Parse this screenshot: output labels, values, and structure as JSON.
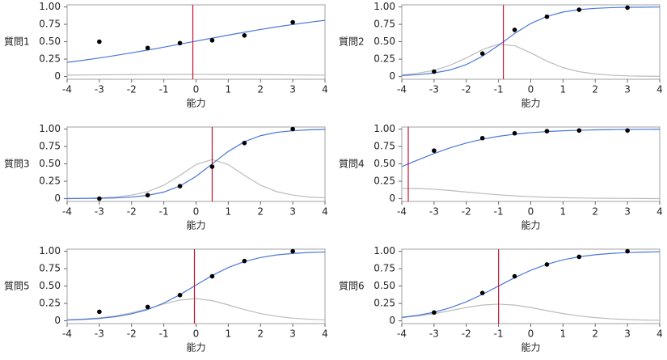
{
  "chart_data": [
    {
      "type": "line",
      "ylabel": "質問1",
      "xlabel": "能力",
      "xlim": [
        -4,
        4
      ],
      "xticks": [
        -4,
        -3,
        -2,
        -1,
        0,
        1,
        2,
        3,
        4
      ],
      "ylim": [
        -0.04,
        1.03
      ],
      "yticks": [
        0,
        0.25,
        {
          "value": 0.5,
          "label": "0.50"
        },
        0.75,
        {
          "value": 1,
          "label": "1.00"
        }
      ],
      "reference_x": -0.1,
      "reference_color": "#c8102e",
      "series": [
        {
          "color": "#4a78d8",
          "x": [
            -4,
            -3.5,
            -3,
            -2.5,
            -2,
            -1.5,
            -1,
            -0.5,
            0,
            0.5,
            1,
            1.5,
            2,
            2.5,
            3,
            3.5,
            4
          ],
          "values": [
            0.203,
            0.233,
            0.266,
            0.302,
            0.34,
            0.38,
            0.422,
            0.465,
            0.509,
            0.552,
            0.595,
            0.636,
            0.676,
            0.713,
            0.747,
            0.779,
            0.808
          ]
        },
        {
          "color": "#bbbbbb",
          "x": [
            -4,
            -3.5,
            -3,
            -2.5,
            -2,
            -1.5,
            -1,
            -0.5,
            0,
            0.5,
            1,
            1.5,
            2,
            2.5,
            3,
            3.5,
            4
          ],
          "values": [
            0.02,
            0.022,
            0.024,
            0.026,
            0.027,
            0.029,
            0.03,
            0.03,
            0.031,
            0.03,
            0.03,
            0.028,
            0.027,
            0.025,
            0.023,
            0.021,
            0.019
          ]
        },
        {
          "type": "scatter",
          "color": "#000000",
          "x": [
            -3,
            -1.5,
            -0.5,
            0.5,
            1.5,
            3
          ],
          "values": [
            0.5,
            0.41,
            0.48,
            0.52,
            0.59,
            0.78
          ]
        }
      ]
    },
    {
      "type": "line",
      "ylabel": "質問2",
      "xlabel": "能力",
      "xlim": [
        -4,
        4
      ],
      "xticks": [
        -4,
        -3,
        -2,
        -1,
        0,
        1,
        2,
        3,
        4
      ],
      "ylim": [
        -0.04,
        1.03
      ],
      "yticks": [
        0,
        0.25,
        {
          "value": 0.5,
          "label": "0.50"
        },
        0.75,
        {
          "value": 1,
          "label": "1.00"
        }
      ],
      "reference_x": -0.85,
      "reference_color": "#c8102e",
      "series": [
        {
          "color": "#4a78d8",
          "x": [
            -4,
            -3.5,
            -3,
            -2.5,
            -2,
            -1.5,
            -1,
            -0.5,
            0,
            0.5,
            1,
            1.5,
            2,
            2.5,
            3,
            3.5,
            4
          ],
          "values": [
            0.013,
            0.026,
            0.05,
            0.095,
            0.171,
            0.291,
            0.449,
            0.618,
            0.762,
            0.864,
            0.927,
            0.962,
            0.98,
            0.99,
            0.995,
            0.997,
            0.999
          ]
        },
        {
          "color": "#bbbbbb",
          "x": [
            -4,
            -3.5,
            -3,
            -2.5,
            -2,
            -1.5,
            -1,
            -0.5,
            0,
            0.5,
            1,
            1.5,
            2,
            2.5,
            3,
            3.5,
            4
          ],
          "values": [
            0.024,
            0.047,
            0.089,
            0.161,
            0.266,
            0.387,
            0.464,
            0.443,
            0.34,
            0.221,
            0.127,
            0.069,
            0.037,
            0.019,
            0.009,
            0.005,
            0.002
          ]
        },
        {
          "type": "scatter",
          "color": "#000000",
          "x": [
            -3,
            -1.5,
            -0.5,
            0.5,
            1.5,
            3
          ],
          "values": [
            0.07,
            0.33,
            0.67,
            0.86,
            0.96,
            0.99
          ]
        }
      ]
    },
    {
      "type": "line",
      "ylabel": "質問3",
      "xlabel": "能力",
      "xlim": [
        -4,
        4
      ],
      "xticks": [
        -4,
        -3,
        -2,
        -1,
        0,
        1,
        2,
        3,
        4
      ],
      "ylim": [
        -0.04,
        1.03
      ],
      "yticks": [
        0,
        0.25,
        {
          "value": 0.5,
          "label": "0.50"
        },
        0.75,
        {
          "value": 1,
          "label": "1.00"
        }
      ],
      "reference_x": 0.5,
      "reference_color": "#c8102e",
      "series": [
        {
          "color": "#4a78d8",
          "x": [
            -4,
            -3.5,
            -3,
            -2.5,
            -2,
            -1.5,
            -1,
            -0.5,
            0,
            0.5,
            1,
            1.5,
            2,
            2.5,
            3,
            3.5,
            4
          ],
          "values": [
            0.001,
            0.003,
            0.005,
            0.011,
            0.023,
            0.047,
            0.095,
            0.182,
            0.321,
            0.5,
            0.679,
            0.818,
            0.905,
            0.953,
            0.977,
            0.989,
            0.995
          ]
        },
        {
          "color": "#bbbbbb",
          "x": [
            -4,
            -3.5,
            -3,
            -2.5,
            -2,
            -1.5,
            -1,
            -0.5,
            0,
            0.5,
            1,
            1.5,
            2,
            2.5,
            3,
            3.5,
            4
          ],
          "values": [
            0.003,
            0.006,
            0.012,
            0.024,
            0.051,
            0.101,
            0.193,
            0.335,
            0.49,
            0.5625,
            0.49,
            0.335,
            0.193,
            0.101,
            0.051,
            0.024,
            0.012
          ]
        },
        {
          "type": "scatter",
          "color": "#000000",
          "x": [
            -3,
            -1.5,
            -0.5,
            0.5,
            1.5,
            3
          ],
          "values": [
            0,
            0.05,
            0.18,
            0.46,
            0.8,
            1.0
          ]
        }
      ]
    },
    {
      "type": "line",
      "ylabel": "質問4",
      "xlabel": "能力",
      "xlim": [
        -4,
        4
      ],
      "xticks": [
        -4,
        -3,
        -2,
        -1,
        0,
        1,
        2,
        3,
        4
      ],
      "ylim": [
        -0.04,
        1.03
      ],
      "yticks": [
        0,
        0.25,
        {
          "value": 0.5,
          "label": "0.50"
        },
        0.75,
        {
          "value": 1,
          "label": "1.00"
        }
      ],
      "reference_x": -3.8,
      "reference_color": "#c8102e",
      "series": [
        {
          "color": "#4a78d8",
          "x": [
            -4,
            -3.5,
            -3,
            -2.5,
            -2,
            -1.5,
            -1,
            -0.5,
            0,
            0.5,
            1,
            1.5,
            2,
            2.5,
            3,
            3.5,
            4
          ],
          "values": [
            0.462,
            0.557,
            0.649,
            0.731,
            0.8,
            0.855,
            0.896,
            0.927,
            0.949,
            0.965,
            0.976,
            0.983,
            0.989,
            0.992,
            0.995,
            0.996,
            0.998
          ]
        },
        {
          "color": "#bbbbbb",
          "x": [
            -4,
            -3.5,
            -3,
            -2.5,
            -2,
            -1.5,
            -1,
            -0.5,
            0,
            0.5,
            1,
            1.5,
            2,
            2.5,
            3,
            3.5,
            4
          ],
          "values": [
            0.147,
            0.146,
            0.135,
            0.117,
            0.095,
            0.074,
            0.055,
            0.04,
            0.029,
            0.02,
            0.014,
            0.01,
            0.006,
            0.005,
            0.003,
            0.002,
            0.001
          ]
        },
        {
          "type": "scatter",
          "color": "#000000",
          "x": [
            -3,
            -1.5,
            -0.5,
            0.5,
            1.5,
            3
          ],
          "values": [
            0.69,
            0.87,
            0.94,
            0.97,
            0.98,
            0.98
          ]
        }
      ]
    },
    {
      "type": "line",
      "ylabel": "質問5",
      "xlabel": "能力",
      "xlim": [
        -4,
        4
      ],
      "xticks": [
        -4,
        -3,
        -2,
        -1,
        0,
        1,
        2,
        3,
        4
      ],
      "ylim": [
        -0.04,
        1.03
      ],
      "yticks": [
        0,
        0.25,
        {
          "value": 0.5,
          "label": "0.50"
        },
        0.75,
        {
          "value": 1,
          "label": "1.00"
        }
      ],
      "reference_x": -0.05,
      "reference_color": "#c8102e",
      "series": [
        {
          "color": "#4a78d8",
          "x": [
            -4,
            -3.5,
            -3,
            -2.5,
            -2,
            -1.5,
            -1,
            -0.5,
            0,
            0.5,
            1,
            1.5,
            2,
            2.5,
            3,
            3.5,
            4
          ],
          "values": [
            0.011,
            0.02,
            0.034,
            0.059,
            0.1,
            0.162,
            0.255,
            0.375,
            0.514,
            0.651,
            0.766,
            0.852,
            0.91,
            0.947,
            0.969,
            0.982,
            0.99
          ]
        },
        {
          "color": "#bbbbbb",
          "x": [
            -4,
            -3.5,
            -3,
            -2.5,
            -2,
            -1.5,
            -1,
            -0.5,
            0,
            0.5,
            1,
            1.5,
            2,
            2.5,
            3,
            3.5,
            4
          ],
          "values": [
            0.014,
            0.025,
            0.042,
            0.071,
            0.114,
            0.173,
            0.243,
            0.299,
            0.319,
            0.29,
            0.229,
            0.161,
            0.105,
            0.064,
            0.038,
            0.023,
            0.013
          ]
        },
        {
          "type": "scatter",
          "color": "#000000",
          "x": [
            -3,
            -1.5,
            -0.5,
            0.5,
            1.5,
            3
          ],
          "values": [
            0.13,
            0.2,
            0.37,
            0.64,
            0.86,
            1.0
          ]
        }
      ]
    },
    {
      "type": "line",
      "ylabel": "質問6",
      "xlabel": "能力",
      "xlim": [
        -4,
        4
      ],
      "xticks": [
        -4,
        -3,
        -2,
        -1,
        0,
        1,
        2,
        3,
        4
      ],
      "ylim": [
        -0.04,
        1.03
      ],
      "yticks": [
        0,
        0.25,
        {
          "value": 0.5,
          "label": "0.50"
        },
        0.75,
        {
          "value": 1,
          "label": "1.00"
        }
      ],
      "reference_x": -1.0,
      "reference_color": "#c8102e",
      "series": [
        {
          "color": "#4a78d8",
          "x": [
            -4,
            -3.5,
            -3,
            -2.5,
            -2,
            -1.5,
            -1,
            -0.5,
            0,
            0.5,
            1,
            1.5,
            2,
            2.5,
            3,
            3.5,
            4
          ],
          "values": [
            0.05,
            0.079,
            0.123,
            0.187,
            0.273,
            0.38,
            0.5,
            0.62,
            0.727,
            0.813,
            0.877,
            0.921,
            0.95,
            0.969,
            0.981,
            0.988,
            0.993
          ]
        },
        {
          "color": "#bbbbbb",
          "x": [
            -4,
            -3.5,
            -3,
            -2.5,
            -2,
            -1.5,
            -1,
            -0.5,
            0,
            0.5,
            1,
            1.5,
            2,
            2.5,
            3,
            3.5,
            4
          ],
          "values": [
            0.046,
            0.07,
            0.104,
            0.146,
            0.191,
            0.226,
            0.24,
            0.226,
            0.191,
            0.146,
            0.104,
            0.07,
            0.046,
            0.029,
            0.018,
            0.011,
            0.007
          ]
        },
        {
          "type": "scatter",
          "color": "#000000",
          "x": [
            -3,
            -1.5,
            -0.5,
            0.5,
            1.5,
            3
          ],
          "values": [
            0.12,
            0.4,
            0.64,
            0.81,
            0.92,
            1.0
          ]
        }
      ]
    }
  ]
}
